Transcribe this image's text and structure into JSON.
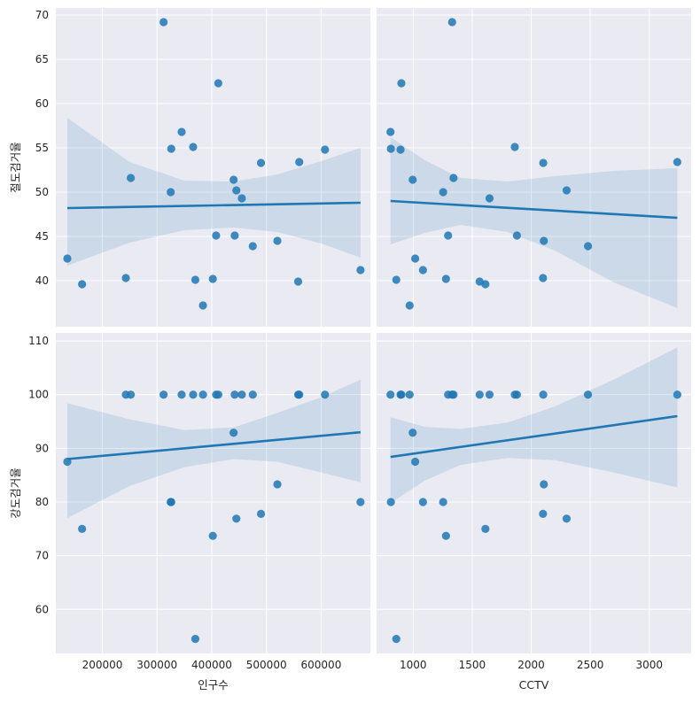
{
  "chart_data": {
    "type": "scatter",
    "kind": "pairplot-regression",
    "style": {
      "background": "#eaeaf2",
      "grid": true,
      "grid_color": "#ffffff",
      "point_color": "#1f77b4",
      "line_color": "#1f77b4",
      "band_color": "#1f77b4"
    },
    "x_vars": [
      {
        "label": "인구수",
        "lim": [
          115000,
          690000
        ],
        "ticks": [
          200000,
          300000,
          400000,
          500000,
          600000
        ],
        "tick_labels": [
          "200000",
          "300000",
          "400000",
          "500000",
          "600000"
        ]
      },
      {
        "label": "CCTV",
        "lim": [
          690,
          3355
        ],
        "ticks": [
          1000,
          1500,
          2000,
          2500,
          3000
        ],
        "tick_labels": [
          "1000",
          "1500",
          "2000",
          "2500",
          "3000"
        ]
      }
    ],
    "y_vars": [
      {
        "label": "절도검거율",
        "lim": [
          34.8,
          70.8
        ],
        "ticks": [
          40,
          45,
          50,
          55,
          60,
          65,
          70
        ],
        "tick_labels": [
          "40",
          "45",
          "50",
          "55",
          "60",
          "65",
          "70"
        ]
      },
      {
        "label": "강도검거율",
        "lim": [
          51.8,
          111.5
        ],
        "ticks": [
          60,
          70,
          80,
          90,
          100,
          110
        ],
        "tick_labels": [
          "60",
          "70",
          "80",
          "90",
          "100",
          "110"
        ]
      }
    ],
    "panels": [
      {
        "row": 0,
        "col": 0,
        "points": [
          [
            312000,
            69.2
          ],
          [
            412000,
            62.3
          ],
          [
            345000,
            56.8
          ],
          [
            366000,
            55.1
          ],
          [
            326000,
            54.9
          ],
          [
            607000,
            54.8
          ],
          [
            490000,
            53.3
          ],
          [
            560000,
            53.4
          ],
          [
            252000,
            51.6
          ],
          [
            440000,
            51.4
          ],
          [
            445000,
            50.2
          ],
          [
            325000,
            50.0
          ],
          [
            455000,
            49.3
          ],
          [
            408000,
            45.1
          ],
          [
            442000,
            45.1
          ],
          [
            520000,
            44.5
          ],
          [
            475000,
            43.9
          ],
          [
            136000,
            42.5
          ],
          [
            672000,
            41.2
          ],
          [
            243000,
            40.3
          ],
          [
            402000,
            40.2
          ],
          [
            370000,
            40.1
          ],
          [
            558000,
            39.9
          ],
          [
            163000,
            39.6
          ],
          [
            384000,
            37.2
          ]
        ],
        "line": [
          [
            136000,
            48.2
          ],
          [
            672000,
            48.8
          ]
        ],
        "band_upper": [
          [
            136000,
            58.4
          ],
          [
            250000,
            53.4
          ],
          [
            350000,
            51.3
          ],
          [
            440000,
            51.2
          ],
          [
            520000,
            52.0
          ],
          [
            600000,
            53.5
          ],
          [
            672000,
            55.0
          ]
        ],
        "band_lower": [
          [
            136000,
            41.7
          ],
          [
            250000,
            44.3
          ],
          [
            350000,
            45.7
          ],
          [
            440000,
            46.0
          ],
          [
            520000,
            45.5
          ],
          [
            600000,
            44.2
          ],
          [
            672000,
            42.6
          ]
        ]
      },
      {
        "row": 0,
        "col": 1,
        "points": [
          [
            1330,
            69.2
          ],
          [
            900,
            62.3
          ],
          [
            808,
            56.8
          ],
          [
            1861,
            55.1
          ],
          [
            811,
            54.9
          ],
          [
            893,
            54.8
          ],
          [
            2102,
            53.3
          ],
          [
            3238,
            53.4
          ],
          [
            1342,
            51.6
          ],
          [
            996,
            51.4
          ],
          [
            2300,
            50.2
          ],
          [
            1254,
            50.0
          ],
          [
            1647,
            49.3
          ],
          [
            1296,
            45.1
          ],
          [
            1879,
            45.1
          ],
          [
            2107,
            44.5
          ],
          [
            2481,
            43.9
          ],
          [
            1017,
            42.5
          ],
          [
            1083,
            41.2
          ],
          [
            2100,
            40.3
          ],
          [
            1278,
            40.2
          ],
          [
            857,
            40.1
          ],
          [
            1563,
            39.9
          ],
          [
            1612,
            39.6
          ],
          [
            970,
            37.2
          ]
        ],
        "line": [
          [
            808,
            49.0
          ],
          [
            3238,
            47.1
          ]
        ],
        "band_upper": [
          [
            808,
            56.2
          ],
          [
            1100,
            53.6
          ],
          [
            1400,
            51.6
          ],
          [
            1800,
            51.2
          ],
          [
            2200,
            51.8
          ],
          [
            2700,
            52.4
          ],
          [
            3238,
            52.7
          ]
        ],
        "band_lower": [
          [
            808,
            44.1
          ],
          [
            1100,
            45.4
          ],
          [
            1400,
            46.3
          ],
          [
            1800,
            45.5
          ],
          [
            2200,
            43.4
          ],
          [
            2700,
            39.8
          ],
          [
            3238,
            36.9
          ]
        ]
      },
      {
        "row": 1,
        "col": 0,
        "points": [
          [
            243000,
            100
          ],
          [
            252000,
            100
          ],
          [
            312000,
            100
          ],
          [
            345000,
            100
          ],
          [
            366000,
            100
          ],
          [
            384000,
            100
          ],
          [
            408000,
            100
          ],
          [
            412000,
            100
          ],
          [
            442000,
            100
          ],
          [
            455000,
            100
          ],
          [
            475000,
            100
          ],
          [
            558000,
            100
          ],
          [
            560000,
            100
          ],
          [
            607000,
            100
          ],
          [
            440000,
            92.9
          ],
          [
            136000,
            87.5
          ],
          [
            520000,
            83.3
          ],
          [
            325000,
            80.0
          ],
          [
            326000,
            80.0
          ],
          [
            672000,
            80.0
          ],
          [
            490000,
            77.8
          ],
          [
            445000,
            76.9
          ],
          [
            163000,
            75.0
          ],
          [
            402000,
            73.7
          ],
          [
            370000,
            54.5
          ]
        ],
        "line": [
          [
            136000,
            88.0
          ],
          [
            672000,
            93.0
          ]
        ],
        "band_upper": [
          [
            136000,
            98.4
          ],
          [
            250000,
            95.4
          ],
          [
            350000,
            93.4
          ],
          [
            440000,
            93.9
          ],
          [
            520000,
            96.6
          ],
          [
            600000,
            99.5
          ],
          [
            672000,
            102.8
          ]
        ],
        "band_lower": [
          [
            136000,
            77.0
          ],
          [
            250000,
            83.0
          ],
          [
            350000,
            86.5
          ],
          [
            440000,
            88.0
          ],
          [
            520000,
            87.5
          ],
          [
            600000,
            85.5
          ],
          [
            672000,
            83.7
          ]
        ]
      },
      {
        "row": 1,
        "col": 1,
        "points": [
          [
            808,
            100
          ],
          [
            893,
            100
          ],
          [
            900,
            100
          ],
          [
            970,
            100
          ],
          [
            1296,
            100
          ],
          [
            1330,
            100
          ],
          [
            1342,
            100
          ],
          [
            1563,
            100
          ],
          [
            1647,
            100
          ],
          [
            1861,
            100
          ],
          [
            1879,
            100
          ],
          [
            2102,
            100
          ],
          [
            2481,
            100
          ],
          [
            3238,
            100
          ],
          [
            996,
            92.9
          ],
          [
            1017,
            87.5
          ],
          [
            2107,
            83.3
          ],
          [
            811,
            80.0
          ],
          [
            1083,
            80.0
          ],
          [
            1254,
            80.0
          ],
          [
            2100,
            77.8
          ],
          [
            2300,
            76.9
          ],
          [
            1612,
            75.0
          ],
          [
            1278,
            73.7
          ],
          [
            857,
            54.5
          ]
        ],
        "line": [
          [
            808,
            88.4
          ],
          [
            3238,
            96.0
          ]
        ],
        "band_upper": [
          [
            808,
            95.8
          ],
          [
            1100,
            94.0
          ],
          [
            1400,
            93.6
          ],
          [
            1800,
            94.8
          ],
          [
            2200,
            97.8
          ],
          [
            2700,
            102.8
          ],
          [
            3238,
            108.8
          ]
        ],
        "band_lower": [
          [
            808,
            79.8
          ],
          [
            1100,
            84.0
          ],
          [
            1400,
            86.9
          ],
          [
            1800,
            88.2
          ],
          [
            2200,
            87.8
          ],
          [
            2700,
            85.5
          ],
          [
            3238,
            82.7
          ]
        ]
      }
    ]
  }
}
